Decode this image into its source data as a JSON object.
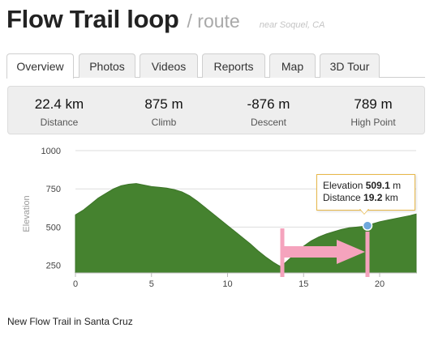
{
  "header": {
    "title": "Flow Trail loop",
    "kind": "/ route",
    "near": "near Soquel, CA"
  },
  "tabs": [
    {
      "label": "Overview",
      "active": true
    },
    {
      "label": "Photos"
    },
    {
      "label": "Videos"
    },
    {
      "label": "Reports"
    },
    {
      "label": "Map"
    },
    {
      "label": "3D Tour"
    }
  ],
  "stats": [
    {
      "value": "22.4 km",
      "label": "Distance"
    },
    {
      "value": "875 m",
      "label": "Climb"
    },
    {
      "value": "-876 m",
      "label": "Descent"
    },
    {
      "value": "789 m",
      "label": "High Point"
    }
  ],
  "tooltip": {
    "elevation_label": "Elevation",
    "elevation_value": "509.1",
    "elevation_unit": "m",
    "distance_label": "Distance",
    "distance_value": "19.2",
    "distance_unit": "km"
  },
  "description": "New Flow Trail in Santa Cruz",
  "colors": {
    "area_fill": "#45822f",
    "marker_fill": "#6fa8dc",
    "arrow": "#f5a3bd",
    "tooltip_border": "#e8b84a"
  },
  "chart_data": {
    "type": "area",
    "ylabel": "Elevation",
    "xlabel": "",
    "xlim": [
      0,
      22.4
    ],
    "ylim": [
      200,
      1000
    ],
    "x_ticks": [
      "0",
      "5",
      "10",
      "15",
      "20"
    ],
    "y_ticks": [
      "250",
      "500",
      "750",
      "1000"
    ],
    "x": [
      0,
      0.5,
      1,
      1.5,
      2,
      2.5,
      3,
      3.5,
      4,
      4.5,
      5,
      5.5,
      6,
      6.5,
      7,
      7.5,
      8,
      8.5,
      9,
      9.5,
      10,
      10.5,
      11,
      11.5,
      12,
      12.5,
      13,
      13.5,
      14,
      14.5,
      15,
      15.5,
      16,
      16.5,
      17,
      17.5,
      18,
      18.5,
      19,
      19.2,
      19.5,
      20,
      20.5,
      21,
      21.5,
      22,
      22.4
    ],
    "values": [
      580,
      610,
      650,
      690,
      720,
      750,
      770,
      780,
      785,
      775,
      765,
      760,
      755,
      745,
      730,
      705,
      670,
      630,
      590,
      550,
      510,
      470,
      430,
      390,
      345,
      305,
      270,
      240,
      285,
      330,
      375,
      410,
      435,
      455,
      470,
      485,
      495,
      500,
      505,
      509,
      520,
      535,
      545,
      555,
      565,
      575,
      585
    ],
    "highlight": {
      "x": 19.2,
      "y": 509.1
    },
    "annotations": {
      "arrow_from_x": 13.6,
      "arrow_to_x": 19.2
    },
    "grid": true
  }
}
